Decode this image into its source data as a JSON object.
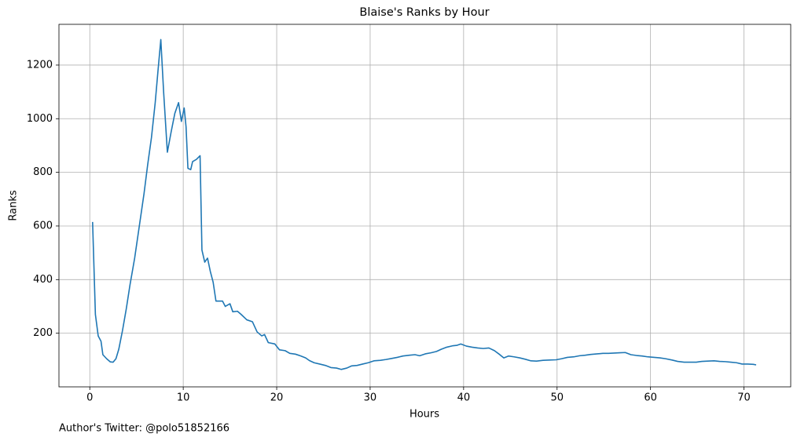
{
  "chart_data": {
    "type": "line",
    "title": "Blaise's Ranks by Hour",
    "x_label": "Hours",
    "y_label": "Ranks",
    "footnote": "Author's Twitter: @polo51852166",
    "grid": true,
    "xlim": [
      -3.3,
      75
    ],
    "ylim": [
      0,
      1352
    ],
    "xticks": [
      0,
      10,
      20,
      30,
      40,
      50,
      60,
      70
    ],
    "yticks": [
      200,
      400,
      600,
      800,
      1000,
      1200
    ],
    "x": [
      0.3,
      0.6,
      0.9,
      1.2,
      1.4,
      1.8,
      2.2,
      2.5,
      2.8,
      3.1,
      3.5,
      3.9,
      4.3,
      4.8,
      5.3,
      5.8,
      6.2,
      6.6,
      7.0,
      7.3,
      7.6,
      7.9,
      8.3,
      8.7,
      9.1,
      9.5,
      9.8,
      10.1,
      10.3,
      10.5,
      10.8,
      11.0,
      11.4,
      11.8,
      12.0,
      12.3,
      12.6,
      12.9,
      13.2,
      13.5,
      14.2,
      14.5,
      15.0,
      15.3,
      15.8,
      16.2,
      16.8,
      17.4,
      17.9,
      18.4,
      18.7,
      19.1,
      19.8,
      20.3,
      20.9,
      21.4,
      22.0,
      22.6,
      23.1,
      23.5,
      24.0,
      24.6,
      25.2,
      25.8,
      26.4,
      26.9,
      27.5,
      28.0,
      28.6,
      29.2,
      29.8,
      30.4,
      31.1,
      31.7,
      32.3,
      32.9,
      33.5,
      34.2,
      34.8,
      35.3,
      35.9,
      36.5,
      37.1,
      37.6,
      38.2,
      38.8,
      39.3,
      39.7,
      40.3,
      40.9,
      41.5,
      42.1,
      42.7,
      43.3,
      43.8,
      44.3,
      44.8,
      45.4,
      46.0,
      46.6,
      47.2,
      47.8,
      48.5,
      49.2,
      49.9,
      50.5,
      51.1,
      51.8,
      52.4,
      53.0,
      53.6,
      54.3,
      54.9,
      55.5,
      56.1,
      56.7,
      57.3,
      57.9,
      58.5,
      59.1,
      59.7,
      60.4,
      61.0,
      61.6,
      62.3,
      62.9,
      63.6,
      64.2,
      64.9,
      65.5,
      66.1,
      66.8,
      67.4,
      68.0,
      68.6,
      69.2,
      69.8,
      70.4,
      71.0,
      71.3
    ],
    "series": [
      {
        "name": "Ranks",
        "color": "#1f77b4",
        "values": [
          615,
          270,
          190,
          170,
          120,
          105,
          93,
          92,
          105,
          140,
          210,
          290,
          380,
          480,
          600,
          720,
          830,
          930,
          1060,
          1180,
          1295,
          1100,
          875,
          950,
          1020,
          1060,
          990,
          1040,
          970,
          815,
          810,
          840,
          848,
          862,
          510,
          465,
          480,
          430,
          390,
          320,
          320,
          300,
          310,
          280,
          282,
          270,
          250,
          243,
          205,
          190,
          195,
          165,
          160,
          138,
          135,
          125,
          122,
          115,
          108,
          98,
          90,
          85,
          80,
          72,
          70,
          65,
          70,
          78,
          80,
          85,
          90,
          97,
          99,
          102,
          106,
          110,
          115,
          118,
          120,
          116,
          123,
          127,
          132,
          140,
          148,
          153,
          155,
          160,
          152,
          148,
          145,
          143,
          145,
          135,
          122,
          108,
          115,
          112,
          108,
          103,
          97,
          96,
          99,
          100,
          101,
          105,
          110,
          112,
          116,
          118,
          121,
          123,
          125,
          125,
          126,
          127,
          128,
          120,
          117,
          115,
          112,
          110,
          108,
          105,
          100,
          95,
          92,
          92,
          92,
          95,
          96,
          97,
          95,
          94,
          92,
          90,
          85,
          85,
          84,
          82
        ]
      }
    ]
  }
}
